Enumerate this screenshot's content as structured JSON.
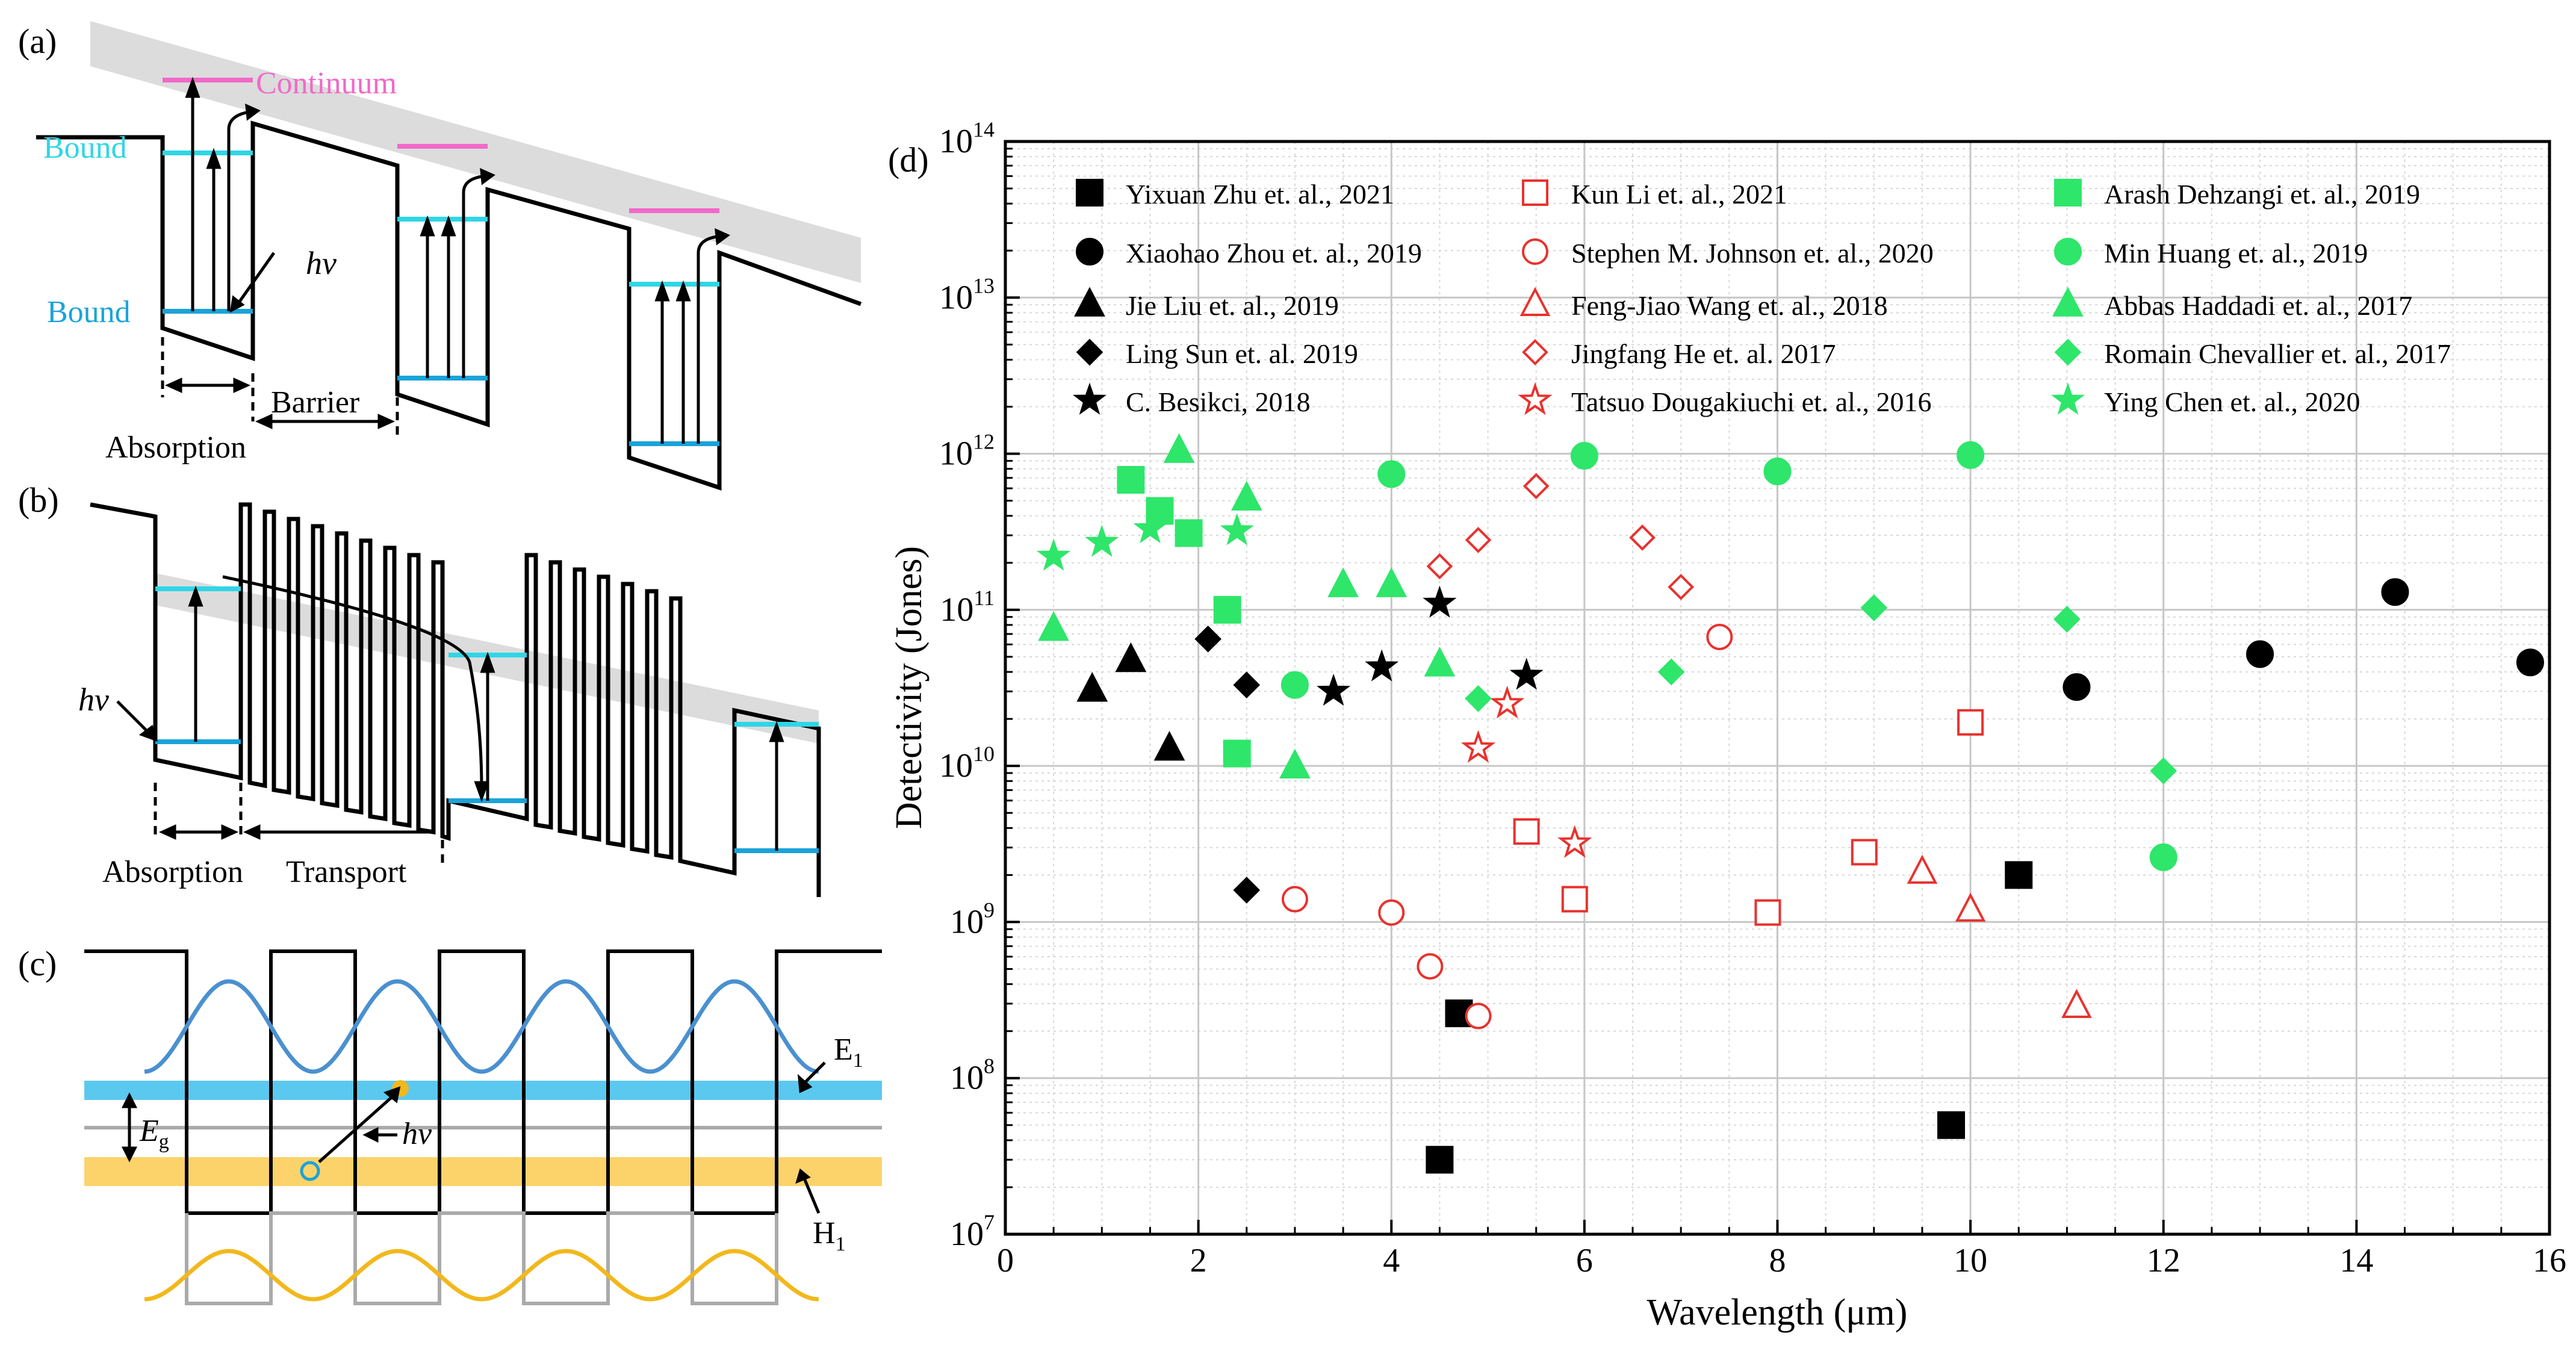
{
  "panels": {
    "a": {
      "label": "(a)",
      "continuum": "Continuum",
      "bound_upper": "Bound",
      "bound_lower": "Bound",
      "hv": "hv",
      "barrier": "Barrier",
      "absorption": "Absorption"
    },
    "b": {
      "label": "(b)",
      "hv": "hv",
      "absorption": "Absorption",
      "transport": "Transport"
    },
    "c": {
      "label": "(c)",
      "e1": "E",
      "e1_sub": "1",
      "h1": "H",
      "h1_sub": "1",
      "eg": "E",
      "eg_sub": "g",
      "hv": "hv"
    },
    "d": {
      "label": "(d)"
    }
  },
  "colors": {
    "black": "#000000",
    "red": "#e8322e",
    "green": "#2ee66a",
    "cyan_level": "#2fd6e6",
    "blue_level": "#1aa3d9",
    "pink_level": "#f06ac8",
    "band_blue": "#5bc8ef",
    "band_yellow": "#fbd36a",
    "wave_blue": "#4a90d0",
    "wave_yellow": "#f2b81c",
    "gray_band": "#dcdcdc"
  },
  "chart_data": {
    "type": "scatter",
    "title": "",
    "xlabel": "Wavelength (μm)",
    "ylabel": "Detectivity (Jones)",
    "xlim": [
      0,
      16
    ],
    "ylim_log10": [
      7,
      14
    ],
    "x_ticks": [
      "0",
      "2",
      "4",
      "6",
      "8",
      "10",
      "12",
      "14",
      "16"
    ],
    "y_ticks": [
      {
        "base": "10",
        "exp": "7"
      },
      {
        "base": "10",
        "exp": "8"
      },
      {
        "base": "10",
        "exp": "9"
      },
      {
        "base": "10",
        "exp": "10"
      },
      {
        "base": "10",
        "exp": "11"
      },
      {
        "base": "10",
        "exp": "12"
      },
      {
        "base": "10",
        "exp": "13"
      },
      {
        "base": "10",
        "exp": "14"
      }
    ],
    "grid": true,
    "legend_position": "top",
    "series": [
      {
        "name": "Yixuan Zhu et. al., 2021",
        "color": "black",
        "marker": "square",
        "filled": true,
        "points": [
          [
            4.5,
            30000000.0
          ],
          [
            4.7,
            260000000.0
          ],
          [
            9.8,
            50000000.0
          ],
          [
            10.5,
            2000000000.0
          ]
        ]
      },
      {
        "name": "Xiaohao Zhou et. al., 2019",
        "color": "black",
        "marker": "circle",
        "filled": true,
        "points": [
          [
            11.1,
            32000000000.0
          ],
          [
            13.0,
            52000000000.0
          ],
          [
            14.4,
            130000000000.0
          ],
          [
            15.8,
            46000000000.0
          ]
        ]
      },
      {
        "name": "Jie Liu et. al., 2019",
        "color": "black",
        "marker": "triangle",
        "filled": true,
        "points": [
          [
            0.9,
            31000000000.0
          ],
          [
            1.3,
            48000000000.0
          ],
          [
            1.7,
            13000000000.0
          ]
        ]
      },
      {
        "name": "Ling Sun et. al. 2019",
        "color": "black",
        "marker": "diamond",
        "filled": true,
        "points": [
          [
            2.1,
            65000000000.0
          ],
          [
            2.5,
            33000000000.0
          ],
          [
            2.5,
            1600000000.0
          ]
        ]
      },
      {
        "name": "C. Besikci, 2018",
        "color": "black",
        "marker": "star",
        "filled": true,
        "points": [
          [
            3.4,
            30000000000.0
          ],
          [
            3.9,
            43000000000.0
          ],
          [
            4.5,
            110000000000.0
          ],
          [
            5.4,
            38000000000.0
          ]
        ]
      },
      {
        "name": "Kun Li et. al., 2021",
        "color": "red",
        "marker": "square",
        "filled": false,
        "points": [
          [
            5.4,
            3800000000.0
          ],
          [
            5.9,
            1400000000.0
          ],
          [
            7.9,
            1150000000.0
          ],
          [
            8.9,
            2800000000.0
          ],
          [
            10.0,
            19000000000.0
          ]
        ]
      },
      {
        "name": "Stephen M. Johnson et. al., 2020",
        "color": "red",
        "marker": "circle",
        "filled": false,
        "points": [
          [
            3.0,
            1400000000.0
          ],
          [
            4.0,
            1150000000.0
          ],
          [
            4.4,
            520000000.0
          ],
          [
            4.9,
            250000000.0
          ],
          [
            7.4,
            67000000000.0
          ]
        ]
      },
      {
        "name": "Feng-Jiao Wang et. al., 2018",
        "color": "red",
        "marker": "triangle",
        "filled": false,
        "points": [
          [
            9.5,
            2100000000.0
          ],
          [
            10.0,
            1200000000.0
          ],
          [
            11.1,
            290000000.0
          ]
        ]
      },
      {
        "name": "Jingfang He et. al. 2017",
        "color": "red",
        "marker": "diamond",
        "filled": false,
        "points": [
          [
            4.5,
            190000000000.0
          ],
          [
            4.9,
            280000000000.0
          ],
          [
            5.5,
            620000000000.0
          ],
          [
            6.6,
            290000000000.0
          ],
          [
            7.0,
            140000000000.0
          ]
        ]
      },
      {
        "name": "Tatsuo Dougakiuchi et. al., 2016",
        "color": "red",
        "marker": "star",
        "filled": false,
        "points": [
          [
            4.9,
            13000000000.0
          ],
          [
            5.2,
            25000000000.0
          ],
          [
            5.9,
            3200000000.0
          ]
        ]
      },
      {
        "name": "Arash Dehzangi et. al., 2019",
        "color": "green",
        "marker": "square",
        "filled": true,
        "points": [
          [
            1.3,
            680000000000.0
          ],
          [
            1.6,
            430000000000.0
          ],
          [
            1.9,
            310000000000.0
          ],
          [
            2.3,
            100000000000.0
          ],
          [
            2.4,
            12000000000.0
          ]
        ]
      },
      {
        "name": "Min Huang et. al., 2019",
        "color": "green",
        "marker": "circle",
        "filled": true,
        "points": [
          [
            3.0,
            33000000000.0
          ],
          [
            4.0,
            740000000000.0
          ],
          [
            6.0,
            970000000000.0
          ],
          [
            8.0,
            770000000000.0
          ],
          [
            10.0,
            980000000000.0
          ],
          [
            12.0,
            2600000000.0
          ]
        ]
      },
      {
        "name": "Abbas Haddadi et. al., 2017",
        "color": "green",
        "marker": "triangle",
        "filled": true,
        "points": [
          [
            0.5,
            76000000000.0
          ],
          [
            1.8,
            1050000000000.0
          ],
          [
            2.5,
            520000000000.0
          ],
          [
            3.0,
            10000000000.0
          ],
          [
            3.5,
            145000000000.0
          ],
          [
            4.0,
            145000000000.0
          ],
          [
            4.5,
            45000000000.0
          ]
        ]
      },
      {
        "name": "Romain Chevallier et. al., 2017",
        "color": "green",
        "marker": "diamond",
        "filled": true,
        "points": [
          [
            4.9,
            27000000000.0
          ],
          [
            6.9,
            40000000000.0
          ],
          [
            9.0,
            103000000000.0
          ],
          [
            11.0,
            87000000000.0
          ],
          [
            12.0,
            9300000000.0
          ]
        ]
      },
      {
        "name": "Ying Chen et. al., 2020",
        "color": "green",
        "marker": "star",
        "filled": true,
        "points": [
          [
            0.5,
            220000000000.0
          ],
          [
            1.0,
            270000000000.0
          ],
          [
            1.5,
            330000000000.0
          ],
          [
            2.4,
            320000000000.0
          ]
        ]
      }
    ]
  }
}
